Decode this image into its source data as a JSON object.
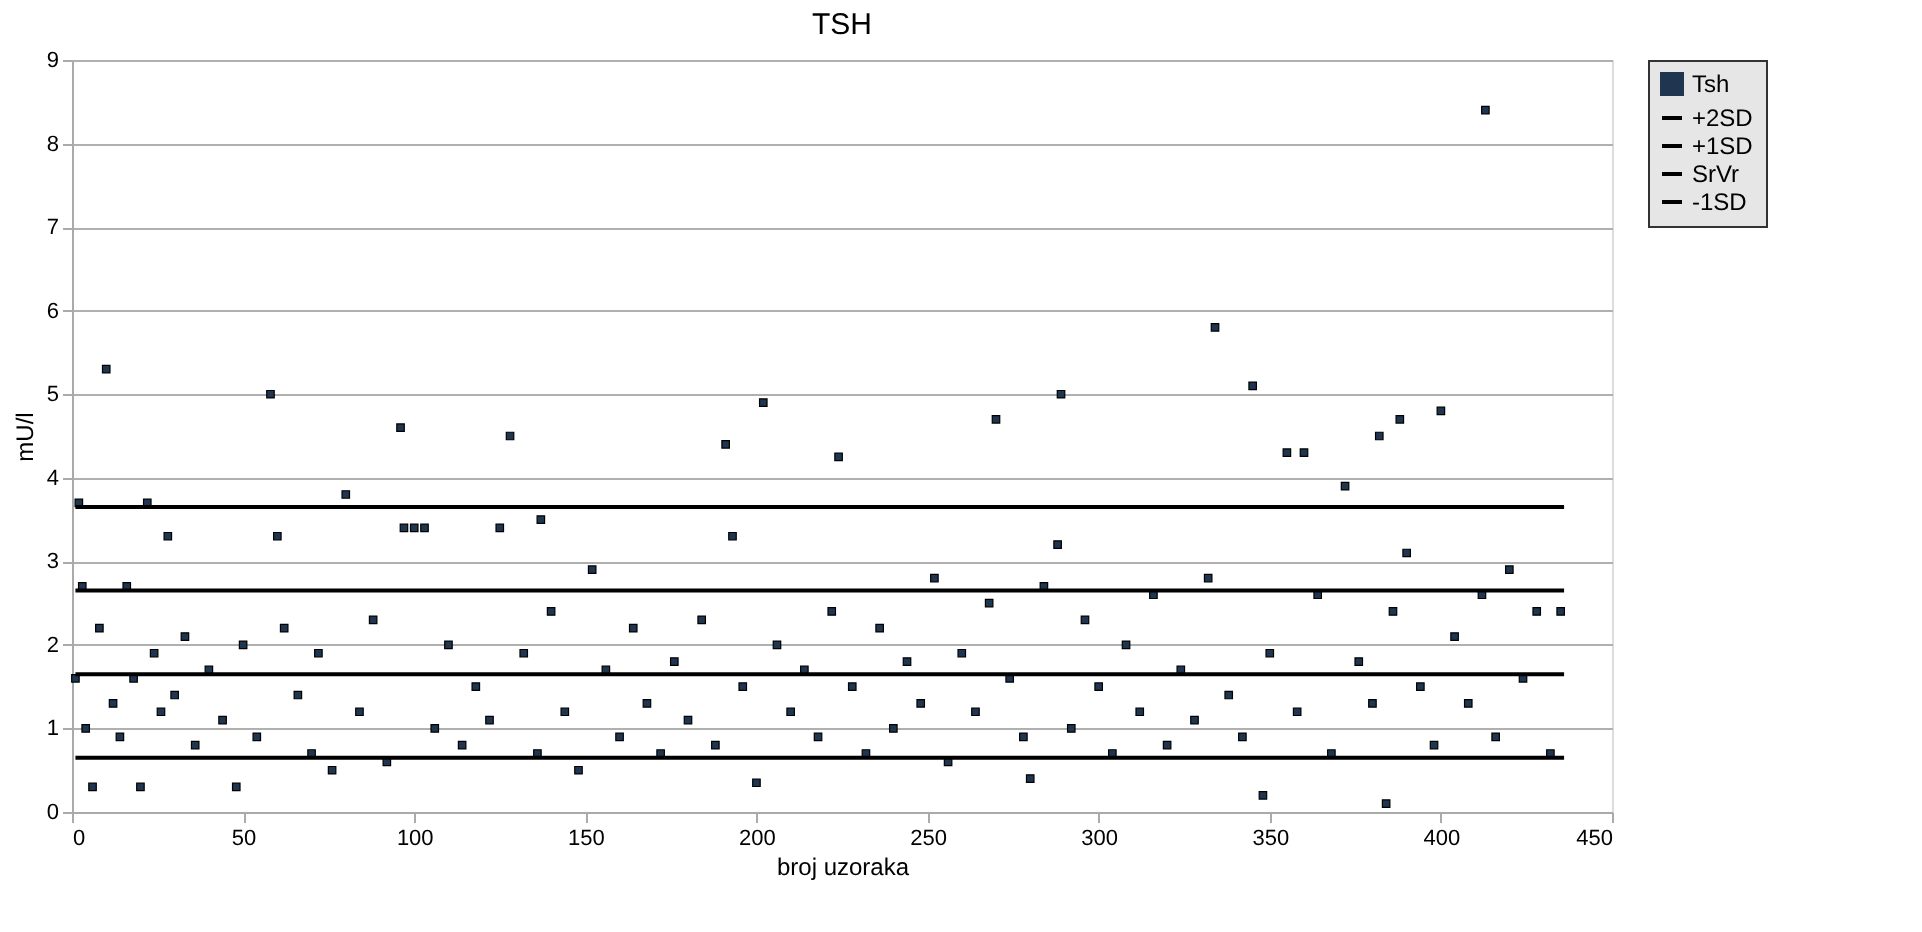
{
  "chart_data": {
    "type": "scatter",
    "title": "TSH",
    "xlabel": "broj uzoraka",
    "ylabel": "mU/l",
    "xlim": [
      0,
      450
    ],
    "xticks": [
      0,
      50,
      100,
      150,
      200,
      250,
      300,
      350,
      400,
      450
    ],
    "ylim": [
      0,
      9
    ],
    "yticks": [
      0,
      1,
      2,
      3,
      4,
      5,
      6,
      7,
      8,
      9
    ],
    "grid": "y",
    "legend": "right",
    "series": [
      {
        "name": "Tsh",
        "marker": "square",
        "color": "#1f3550",
        "x": [
          1,
          2,
          3,
          4,
          6,
          8,
          10,
          12,
          14,
          16,
          18,
          20,
          22,
          24,
          26,
          28,
          30,
          33,
          36,
          40,
          44,
          48,
          50,
          54,
          58,
          60,
          62,
          66,
          70,
          72,
          76,
          80,
          84,
          88,
          92,
          96,
          97,
          100,
          103,
          106,
          110,
          114,
          118,
          122,
          125,
          128,
          132,
          136,
          137,
          140,
          144,
          148,
          152,
          156,
          160,
          164,
          168,
          172,
          176,
          180,
          184,
          188,
          191,
          193,
          196,
          200,
          202,
          206,
          210,
          214,
          218,
          222,
          224,
          228,
          232,
          236,
          240,
          244,
          248,
          252,
          256,
          260,
          264,
          268,
          270,
          274,
          278,
          280,
          284,
          288,
          289,
          292,
          296,
          300,
          304,
          308,
          312,
          316,
          320,
          324,
          328,
          332,
          334,
          338,
          342,
          345,
          348,
          350,
          355,
          358,
          360,
          364,
          368,
          372,
          376,
          380,
          382,
          384,
          386,
          388,
          390,
          394,
          398,
          400,
          404,
          408,
          412,
          413,
          416,
          420,
          424,
          428,
          432,
          435
        ],
        "values": [
          1.6,
          3.7,
          2.7,
          1.0,
          0.3,
          2.2,
          5.3,
          1.3,
          0.9,
          2.7,
          1.6,
          0.3,
          3.7,
          1.9,
          1.2,
          3.3,
          1.4,
          2.1,
          0.8,
          1.7,
          1.1,
          0.3,
          2.0,
          0.9,
          5.0,
          3.3,
          2.2,
          1.4,
          0.7,
          1.9,
          0.5,
          3.8,
          1.2,
          2.3,
          0.6,
          4.6,
          3.4,
          3.4,
          3.4,
          1.0,
          2.0,
          0.8,
          1.5,
          1.1,
          3.4,
          4.5,
          1.9,
          0.7,
          3.5,
          2.4,
          1.2,
          0.5,
          2.9,
          1.7,
          0.9,
          2.2,
          1.3,
          0.7,
          1.8,
          1.1,
          2.3,
          0.8,
          4.4,
          3.3,
          1.5,
          0.35,
          4.9,
          2.0,
          1.2,
          1.7,
          0.9,
          2.4,
          4.25,
          1.5,
          0.7,
          2.2,
          1.0,
          1.8,
          1.3,
          2.8,
          0.6,
          1.9,
          1.2,
          2.5,
          4.7,
          1.6,
          0.9,
          0.4,
          2.7,
          3.2,
          5.0,
          1.0,
          2.3,
          1.5,
          0.7,
          2.0,
          1.2,
          2.6,
          0.8,
          1.7,
          1.1,
          2.8,
          5.8,
          1.4,
          0.9,
          5.1,
          0.2,
          1.9,
          4.3,
          1.2,
          4.3,
          2.6,
          0.7,
          3.9,
          1.8,
          1.3,
          4.5,
          0.1,
          2.4,
          4.7,
          3.1,
          1.5,
          0.8,
          4.8,
          2.1,
          1.3,
          2.6,
          8.4,
          0.9,
          2.9,
          1.6,
          2.4,
          0.7,
          2.4
        ]
      },
      {
        "name": "+2SD",
        "type": "line",
        "color": "#000000",
        "x": [
          1,
          436
        ],
        "values": [
          3.65,
          3.65
        ]
      },
      {
        "name": "+1SD",
        "type": "line",
        "color": "#000000",
        "x": [
          1,
          436
        ],
        "values": [
          2.65,
          2.65
        ]
      },
      {
        "name": "SrVr",
        "type": "line",
        "color": "#000000",
        "x": [
          1,
          436
        ],
        "values": [
          1.65,
          1.65
        ]
      },
      {
        "name": "-1SD",
        "type": "line",
        "color": "#000000",
        "x": [
          1,
          436
        ],
        "values": [
          0.65,
          0.65
        ]
      }
    ]
  }
}
